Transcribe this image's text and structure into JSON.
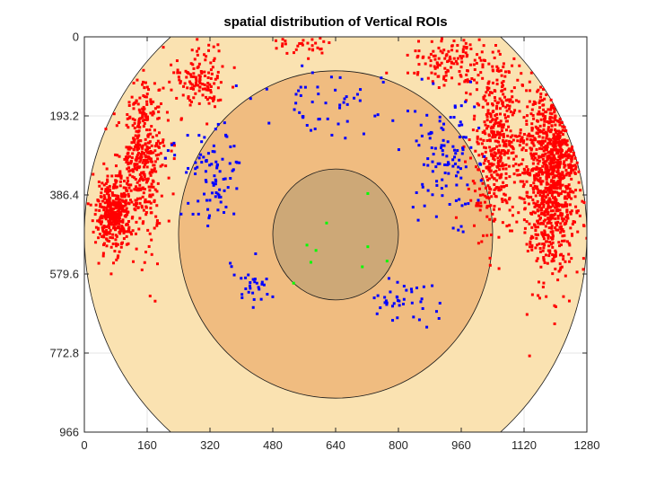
{
  "chart_data": {
    "type": "scatter",
    "title": "spatial distribution of Vertical ROIs",
    "xlabel": "",
    "ylabel": "",
    "xlim": [
      0,
      1280
    ],
    "ylim": [
      0,
      966
    ],
    "y_reversed": true,
    "grid": true,
    "legend": "none",
    "x_ticks": [
      "0",
      "160",
      "320",
      "480",
      "640",
      "800",
      "960",
      "1120",
      "1280"
    ],
    "x_tick_values": [
      0,
      160,
      320,
      480,
      640,
      800,
      960,
      1120,
      1280
    ],
    "y_ticks": [
      "0",
      "193.2",
      "386.4",
      "579.6",
      "772.8",
      "966"
    ],
    "y_tick_values": [
      0,
      193.2,
      386.4,
      579.6,
      772.8,
      966
    ],
    "regions": [
      {
        "shape": "circle",
        "center": [
          640,
          483
        ],
        "radius": 640,
        "fill": "#fae2b1"
      },
      {
        "shape": "circle",
        "center": [
          640,
          483
        ],
        "radius": 400,
        "fill": "#f0bc80"
      },
      {
        "shape": "circle",
        "center": [
          640,
          483
        ],
        "radius": 160,
        "fill": "#cda877"
      }
    ],
    "series": [
      {
        "color": "#ff0000",
        "clusters": [
          {
            "center": [
              1190,
              330
            ],
            "spread": [
              70,
              240
            ],
            "count": 1000,
            "seed": 11
          },
          {
            "center": [
              1050,
              260
            ],
            "spread": [
              60,
              230
            ],
            "count": 420,
            "seed": 12
          },
          {
            "center": [
              75,
              430
            ],
            "spread": [
              45,
              90
            ],
            "count": 380,
            "seed": 13
          },
          {
            "center": [
              150,
              300
            ],
            "spread": [
              60,
              200
            ],
            "count": 420,
            "seed": 14
          },
          {
            "center": [
              300,
              110
            ],
            "spread": [
              70,
              80
            ],
            "count": 130,
            "seed": 15
          },
          {
            "center": [
              940,
              60
            ],
            "spread": [
              110,
              60
            ],
            "count": 130,
            "seed": 16
          },
          {
            "center": [
              560,
              20
            ],
            "spread": [
              80,
              25
            ],
            "count": 30,
            "seed": 17
          }
        ]
      },
      {
        "color": "#0000ff",
        "clusters": [
          {
            "center": [
              330,
              320
            ],
            "spread": [
              80,
              130
            ],
            "count": 90,
            "seed": 21
          },
          {
            "center": [
              920,
              300
            ],
            "spread": [
              80,
              140
            ],
            "count": 110,
            "seed": 22
          },
          {
            "center": [
              640,
              160
            ],
            "spread": [
              160,
              70
            ],
            "count": 50,
            "seed": 23
          },
          {
            "center": [
              420,
              600
            ],
            "spread": [
              60,
              60
            ],
            "count": 30,
            "seed": 24
          },
          {
            "center": [
              820,
              640
            ],
            "spread": [
              90,
              50
            ],
            "count": 40,
            "seed": 25
          }
        ]
      },
      {
        "color": "#00ff00",
        "points": [
          [
            722,
            383
          ],
          [
            617,
            455
          ],
          [
            567,
            509
          ],
          [
            590,
            522
          ],
          [
            577,
            551
          ],
          [
            722,
            513
          ],
          [
            771,
            548
          ],
          [
            708,
            562
          ],
          [
            533,
            602
          ]
        ]
      }
    ]
  }
}
